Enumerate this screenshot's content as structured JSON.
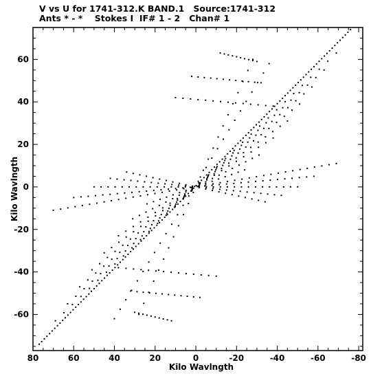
{
  "chart_data": {
    "type": "scatter",
    "title": "V vs U for 1741-312.K BAND.1   Source:1741-312",
    "subtitle": "Ants * - *    Stokes I  IF# 1 - 2   Chan# 1",
    "xlabel": "Kilo Wavlngth",
    "ylabel": "Kilo Wavlngth",
    "xlim": [
      80,
      -82
    ],
    "ylim": [
      -77,
      75
    ],
    "x_ticks": [
      80,
      60,
      40,
      20,
      0,
      -20,
      -40,
      -60,
      -80
    ],
    "y_ticks": [
      60,
      40,
      20,
      0,
      -20,
      -40,
      -60
    ],
    "grid": false,
    "tracks": [
      {
        "start": [
          77,
          -74
        ],
        "end": [
          -76,
          74
        ],
        "count": 120
      },
      {
        "start": [
          69,
          -63
        ],
        "end": [
          -69,
          63
        ],
        "count": 34
      },
      {
        "start": [
          63,
          -55
        ],
        "end": [
          -63,
          55
        ],
        "count": 32
      },
      {
        "start": [
          57,
          -47
        ],
        "end": [
          -57,
          47
        ],
        "count": 30
      },
      {
        "start": [
          51,
          -39
        ],
        "end": [
          -51,
          39
        ],
        "count": 28
      },
      {
        "start": [
          45,
          -31
        ],
        "end": [
          -45,
          31
        ],
        "count": 26
      },
      {
        "start": [
          38,
          -23
        ],
        "end": [
          -38,
          23
        ],
        "count": 22
      },
      {
        "start": [
          31,
          -15
        ],
        "end": [
          -31,
          15
        ],
        "count": 20
      },
      {
        "start": [
          24,
          -8
        ],
        "end": [
          -24,
          8
        ],
        "count": 16
      },
      {
        "start": [
          70,
          -11
        ],
        "end": [
          -69,
          11
        ],
        "count": 40
      },
      {
        "start": [
          60,
          -5
        ],
        "end": [
          -58,
          5
        ],
        "count": 34
      },
      {
        "start": [
          50,
          0
        ],
        "end": [
          -50,
          0
        ],
        "count": 30
      },
      {
        "start": [
          42,
          4
        ],
        "end": [
          -42,
          -4
        ],
        "count": 26
      },
      {
        "start": [
          34,
          7
        ],
        "end": [
          -34,
          -7
        ],
        "count": 22
      },
      {
        "start": [
          28,
          -60
        ],
        "end": [
          -28,
          60
        ],
        "count": 24
      },
      {
        "start": [
          40,
          -62
        ],
        "end": [
          -36,
          58
        ],
        "count": 28
      },
      {
        "start": [
          30,
          -59
        ],
        "end": [
          12,
          -63
        ],
        "count": 10
      },
      {
        "start": [
          -12,
          63
        ],
        "end": [
          -30,
          59
        ],
        "count": 10
      },
      {
        "start": [
          38,
          -38
        ],
        "end": [
          -10,
          -42
        ],
        "count": 14
      },
      {
        "start": [
          10,
          42
        ],
        "end": [
          -38,
          38
        ],
        "count": 14
      },
      {
        "start": [
          32,
          -49
        ],
        "end": [
          -2,
          -52
        ],
        "count": 12
      },
      {
        "start": [
          2,
          52
        ],
        "end": [
          -32,
          49
        ],
        "count": 12
      }
    ]
  }
}
